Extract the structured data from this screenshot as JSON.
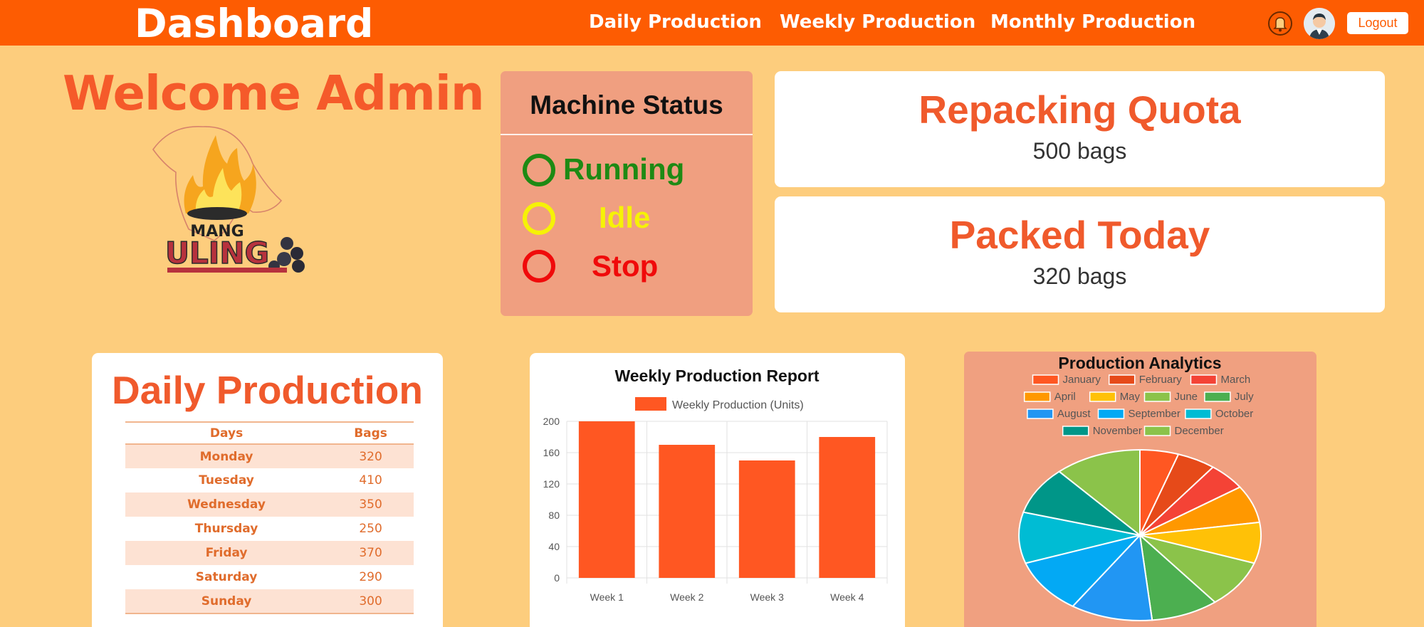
{
  "header": {
    "brand": "Dashboard",
    "nav": [
      "Daily Production",
      "Weekly Production",
      "Monthly Production"
    ],
    "logout": "Logout",
    "bell_icon": "bell-icon",
    "avatar_icon": "user-avatar-icon"
  },
  "welcome": "Welcome Admin",
  "logo": {
    "line1": "MANG",
    "line2": "ULING"
  },
  "machine_status": {
    "title": "Machine Status",
    "items": [
      {
        "label": "Running",
        "color": "#1e8a14"
      },
      {
        "label": "Idle",
        "color": "#f6f206"
      },
      {
        "label": "Stop",
        "color": "#f00a0a"
      }
    ]
  },
  "repacking": {
    "title": "Repacking Quota",
    "value": "500 bags"
  },
  "packed": {
    "title": "Packed Today",
    "value": "320 bags"
  },
  "daily_production": {
    "title": "Daily Production",
    "headers": [
      "Days",
      "Bags"
    ],
    "rows": [
      [
        "Monday",
        "320"
      ],
      [
        "Tuesday",
        "410"
      ],
      [
        "Wednesday",
        "350"
      ],
      [
        "Thursday",
        "250"
      ],
      [
        "Friday",
        "370"
      ],
      [
        "Saturday",
        "290"
      ],
      [
        "Sunday",
        "300"
      ]
    ]
  },
  "chart_data": [
    {
      "type": "bar",
      "title": "Weekly Production Report",
      "categories": [
        "Week 1",
        "Week 2",
        "Week 3",
        "Week 4"
      ],
      "series": [
        {
          "name": "Weekly Production (Units)",
          "values": [
            200,
            170,
            150,
            180
          ],
          "color": "#ff5722"
        }
      ],
      "ylim": [
        0,
        200
      ],
      "yticks": [
        0,
        40,
        80,
        120,
        160,
        200
      ],
      "grid": true,
      "legend": "top"
    },
    {
      "type": "pie",
      "title": "Production Analytics",
      "categories": [
        "January",
        "February",
        "March",
        "April",
        "May",
        "June",
        "July",
        "August",
        "September",
        "October",
        "November",
        "December"
      ],
      "values": [
        4,
        4,
        4,
        5.5,
        6,
        7,
        7,
        8.5,
        8,
        7.5,
        7,
        9
      ],
      "colors": [
        "#ff5722",
        "#e64a19",
        "#f44336",
        "#ff9800",
        "#ffc107",
        "#8bc34a",
        "#4caf50",
        "#2196f3",
        "#03a9f4",
        "#00bcd4",
        "#009688",
        "#8bc34a"
      ],
      "legend": "top"
    }
  ]
}
